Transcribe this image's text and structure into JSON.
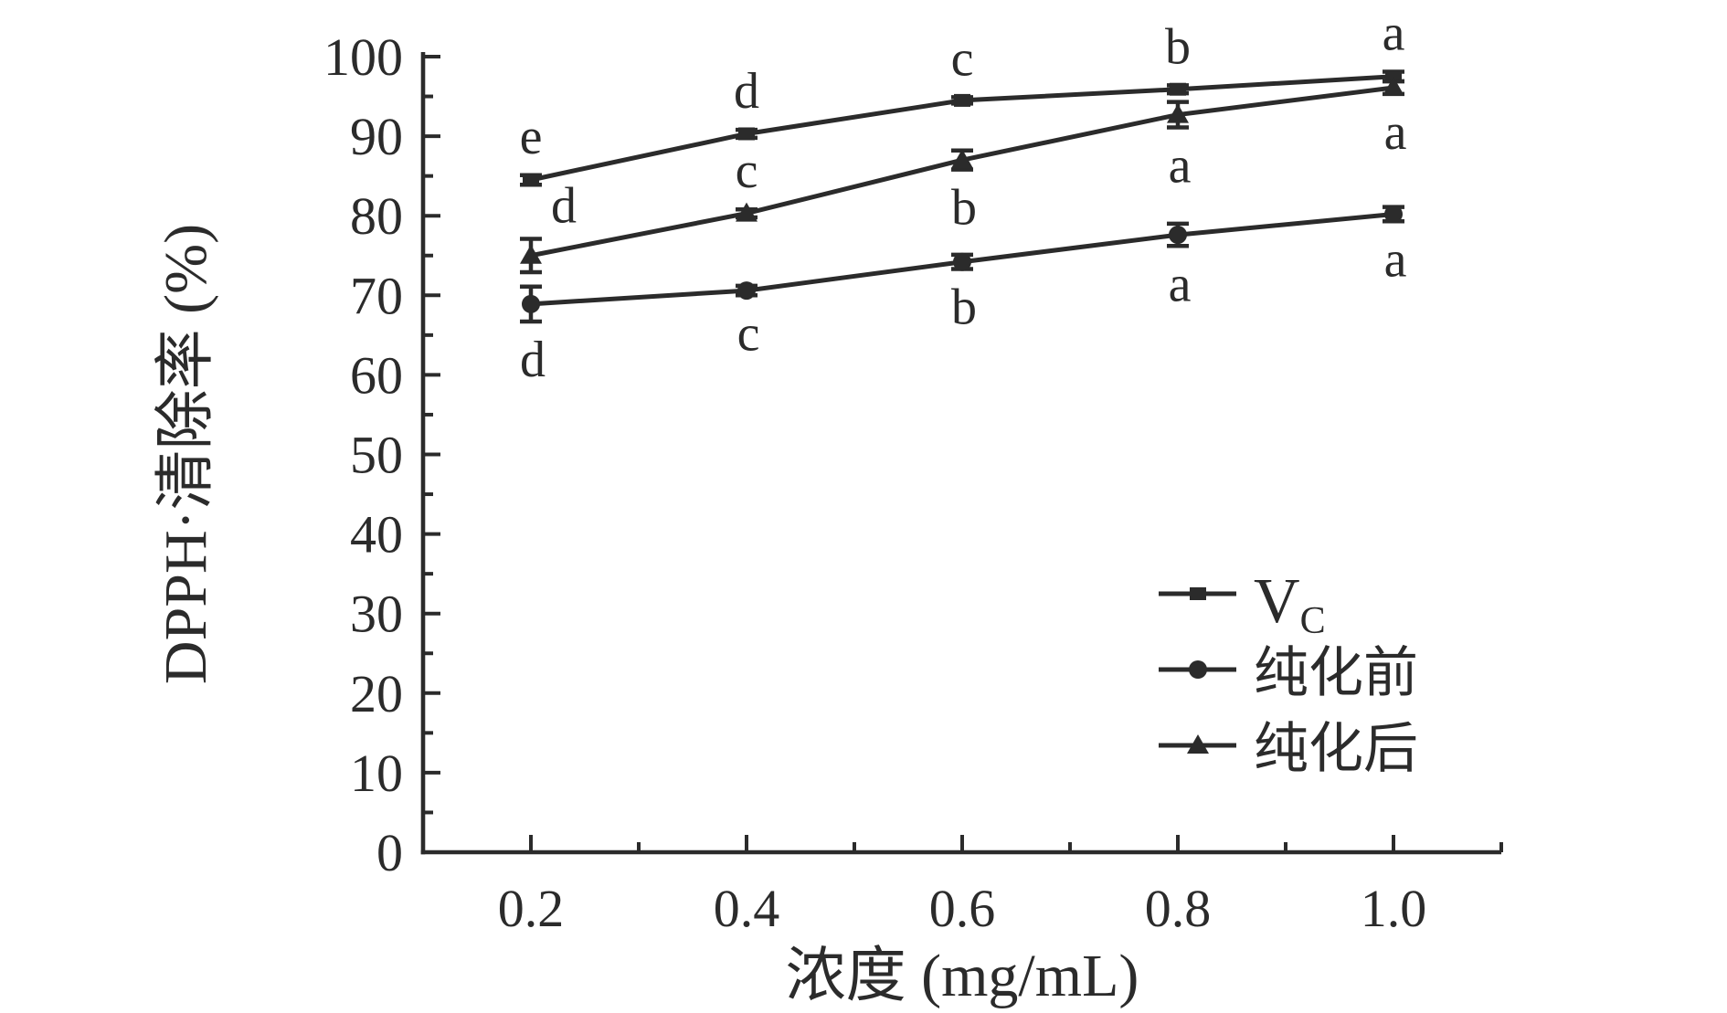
{
  "chart_data": {
    "type": "line",
    "title": "",
    "xlabel": "浓度 (mg/mL)",
    "ylabel": "DPPH·清除率 (%)",
    "x": [
      0.2,
      0.4,
      0.6,
      0.8,
      1.0
    ],
    "xlim": [
      0.1,
      1.1
    ],
    "ylim": [
      0,
      100
    ],
    "x_tick_labels": [
      "0.2",
      "0.4",
      "0.6",
      "0.8",
      "1.0"
    ],
    "y_tick_labels": [
      "0",
      "10",
      "20",
      "30",
      "40",
      "50",
      "60",
      "70",
      "80",
      "90",
      "100"
    ],
    "y_major_step": 10,
    "y_minor_step": 5,
    "x_minor_step": 0.1,
    "grid": "off",
    "legend_position": "inside-right-lower",
    "color": "#2b2b2b",
    "background": "#ffffff",
    "series": [
      {
        "name": "Vc",
        "legend_main": "V",
        "legend_sub": "C",
        "marker": "square",
        "values": [
          84.5,
          90.3,
          94.5,
          95.9,
          97.5
        ],
        "errors": [
          0.6,
          0.5,
          0.4,
          0.5,
          0.6
        ],
        "point_labels": [
          "e",
          "d",
          "c",
          "b",
          "a"
        ],
        "label_sides": [
          "above",
          "above",
          "above",
          "above",
          "above"
        ]
      },
      {
        "name": "纯化前",
        "legend_main": "纯化前",
        "legend_sub": "",
        "marker": "circle",
        "values": [
          68.9,
          70.6,
          74.2,
          77.6,
          80.2
        ],
        "errors": [
          2.2,
          0.6,
          0.9,
          1.4,
          0.9
        ],
        "point_labels": [
          "d",
          "c",
          "b",
          "a",
          "a"
        ],
        "label_sides": [
          "below",
          "below",
          "below",
          "below",
          "below"
        ]
      },
      {
        "name": "纯化后",
        "legend_main": "纯化后",
        "legend_sub": "",
        "marker": "triangle",
        "values": [
          75.0,
          80.3,
          87.0,
          92.7,
          96.1
        ],
        "errors": [
          2.1,
          0.5,
          1.2,
          1.6,
          0.8
        ],
        "point_labels": [
          "d",
          "c",
          "b",
          "a",
          "a"
        ],
        "label_sides": [
          "above-right",
          "above",
          "below",
          "below",
          "below"
        ]
      }
    ]
  }
}
